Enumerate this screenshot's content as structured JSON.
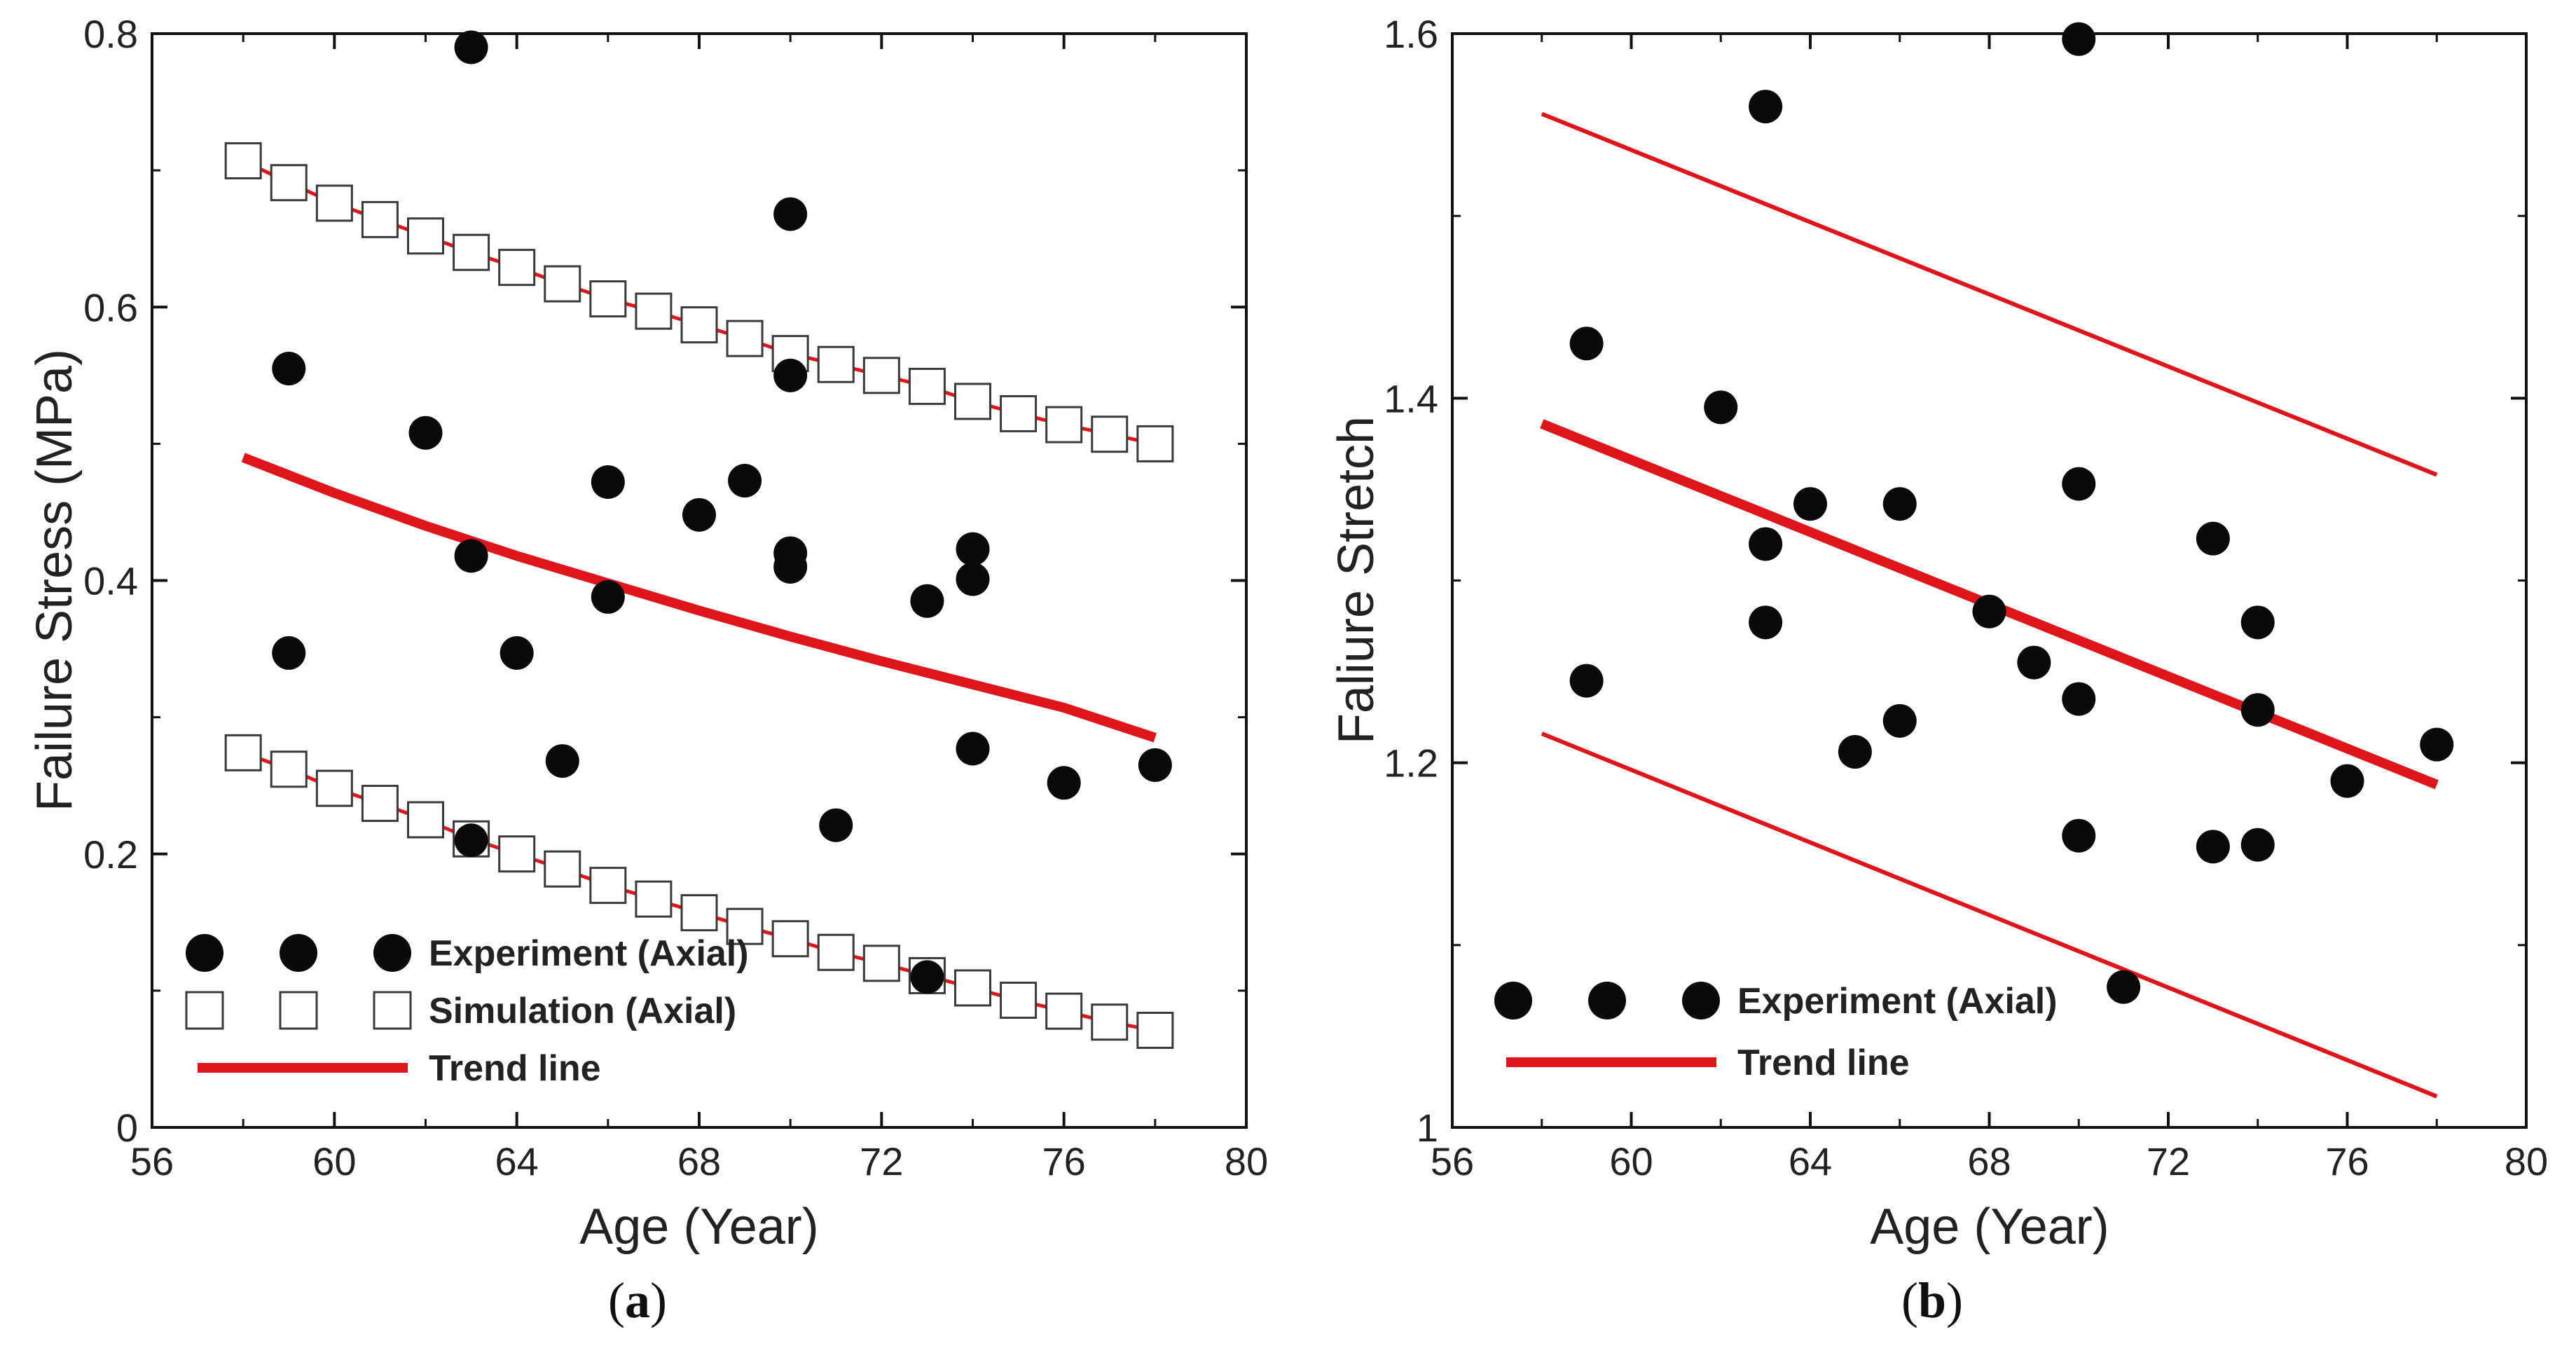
{
  "colors": {
    "marker": "#0a0a0a",
    "trend": "#e0151b",
    "axis": "#111111",
    "square_fill": "#ffffff"
  },
  "chart_data": [
    {
      "panel": "a",
      "type": "scatter",
      "xlabel": "Age (Year)",
      "ylabel": "Failure Stress (MPa)",
      "xlim": [
        56,
        80
      ],
      "ylim": [
        0,
        0.8
      ],
      "xticks": [
        56,
        60,
        64,
        68,
        72,
        76,
        80
      ],
      "yticks": [
        0,
        0.2,
        0.4,
        0.6,
        0.8
      ],
      "ytick_labels": [
        "0",
        "0.2",
        "0.4",
        "0.6",
        "0.8"
      ],
      "legend_position": "bottom-left",
      "series": [
        {
          "name": "Experiment (Axial)",
          "kind": "scatter-filled-circle",
          "points": [
            [
              59,
              0.555
            ],
            [
              59,
              0.347
            ],
            [
              62,
              0.508
            ],
            [
              63,
              0.79
            ],
            [
              63,
              0.418
            ],
            [
              63,
              0.21
            ],
            [
              64,
              0.347
            ],
            [
              65,
              0.268
            ],
            [
              66,
              0.472
            ],
            [
              66,
              0.388
            ],
            [
              68,
              0.448
            ],
            [
              69,
              0.473
            ],
            [
              70,
              0.668
            ],
            [
              70,
              0.55
            ],
            [
              70,
              0.42
            ],
            [
              70,
              0.41
            ],
            [
              71,
              0.221
            ],
            [
              73,
              0.385
            ],
            [
              73,
              0.11
            ],
            [
              74,
              0.423
            ],
            [
              74,
              0.401
            ],
            [
              74,
              0.277
            ],
            [
              76,
              0.252
            ],
            [
              78,
              0.265
            ]
          ]
        },
        {
          "name": "Simulation (Axial)",
          "kind": "scatter-open-square-upper",
          "points": [
            [
              58,
              0.707
            ],
            [
              59,
              0.691
            ],
            [
              60,
              0.676
            ],
            [
              61,
              0.664
            ],
            [
              62,
              0.652
            ],
            [
              63,
              0.64
            ],
            [
              64,
              0.629
            ],
            [
              65,
              0.617
            ],
            [
              66,
              0.606
            ],
            [
              67,
              0.597
            ],
            [
              68,
              0.587
            ],
            [
              69,
              0.577
            ],
            [
              70,
              0.566
            ],
            [
              71,
              0.558
            ],
            [
              72,
              0.55
            ],
            [
              73,
              0.542
            ],
            [
              74,
              0.531
            ],
            [
              75,
              0.522
            ],
            [
              76,
              0.514
            ],
            [
              77,
              0.507
            ],
            [
              78,
              0.5
            ]
          ]
        },
        {
          "name": "Simulation (Axial)",
          "kind": "scatter-open-square-lower",
          "points": [
            [
              58,
              0.274
            ],
            [
              59,
              0.262
            ],
            [
              60,
              0.248
            ],
            [
              61,
              0.237
            ],
            [
              62,
              0.225
            ],
            [
              63,
              0.211
            ],
            [
              64,
              0.2
            ],
            [
              65,
              0.189
            ],
            [
              66,
              0.177
            ],
            [
              67,
              0.167
            ],
            [
              68,
              0.157
            ],
            [
              69,
              0.147
            ],
            [
              70,
              0.138
            ],
            [
              71,
              0.128
            ],
            [
              72,
              0.12
            ],
            [
              73,
              0.111
            ],
            [
              74,
              0.102
            ],
            [
              75,
              0.093
            ],
            [
              76,
              0.085
            ],
            [
              77,
              0.077
            ],
            [
              78,
              0.071
            ]
          ]
        },
        {
          "name": "Trend line",
          "kind": "line-thick",
          "points": [
            [
              58,
              0.49
            ],
            [
              60,
              0.464
            ],
            [
              62,
              0.44
            ],
            [
              64,
              0.418
            ],
            [
              66,
              0.398
            ],
            [
              68,
              0.378
            ],
            [
              70,
              0.359
            ],
            [
              72,
              0.341
            ],
            [
              74,
              0.324
            ],
            [
              76,
              0.307
            ],
            [
              78,
              0.285
            ]
          ]
        }
      ],
      "legend": [
        {
          "label": "Experiment (Axial)",
          "symbol": "circle"
        },
        {
          "label": "Simulation (Axial)",
          "symbol": "square"
        },
        {
          "label": "Trend line",
          "symbol": "line"
        }
      ]
    },
    {
      "panel": "b",
      "type": "scatter",
      "xlabel": "Age (Year)",
      "ylabel": "Faliure Stretch",
      "xlim": [
        56,
        80
      ],
      "ylim": [
        1.0,
        1.6
      ],
      "xticks": [
        56,
        60,
        64,
        68,
        72,
        76,
        80
      ],
      "yticks": [
        1.0,
        1.2,
        1.4,
        1.6
      ],
      "ytick_labels": [
        "1",
        "1.2",
        "1.4",
        "1.6"
      ],
      "legend_position": "bottom-left",
      "series": [
        {
          "name": "Experiment (Axial)",
          "kind": "scatter-filled-circle",
          "points": [
            [
              59,
              1.43
            ],
            [
              59,
              1.245
            ],
            [
              62,
              1.395
            ],
            [
              63,
              1.56
            ],
            [
              63,
              1.32
            ],
            [
              63,
              1.277
            ],
            [
              64,
              1.342
            ],
            [
              65,
              1.206
            ],
            [
              66,
              1.342
            ],
            [
              66,
              1.223
            ],
            [
              68,
              1.283
            ],
            [
              69,
              1.255
            ],
            [
              70,
              1.597
            ],
            [
              70,
              1.353
            ],
            [
              70,
              1.235
            ],
            [
              70,
              1.16
            ],
            [
              71,
              1.077
            ],
            [
              73,
              1.323
            ],
            [
              73,
              1.154
            ],
            [
              74,
              1.277
            ],
            [
              74,
              1.229
            ],
            [
              74,
              1.155
            ],
            [
              76,
              1.19
            ],
            [
              78,
              1.21
            ]
          ]
        },
        {
          "name": "Trend line",
          "kind": "line-thick",
          "points": [
            [
              58,
              1.386
            ],
            [
              78,
              1.188
            ]
          ]
        },
        {
          "name": "",
          "kind": "line-thin",
          "points": [
            [
              58,
              1.556
            ],
            [
              78,
              1.358
            ]
          ]
        },
        {
          "name": "",
          "kind": "line-thin",
          "points": [
            [
              58,
              1.216
            ],
            [
              78,
              1.017
            ]
          ]
        }
      ],
      "legend": [
        {
          "label": "Experiment (Axial)",
          "symbol": "circle"
        },
        {
          "label": "Trend line",
          "symbol": "line"
        }
      ]
    }
  ]
}
